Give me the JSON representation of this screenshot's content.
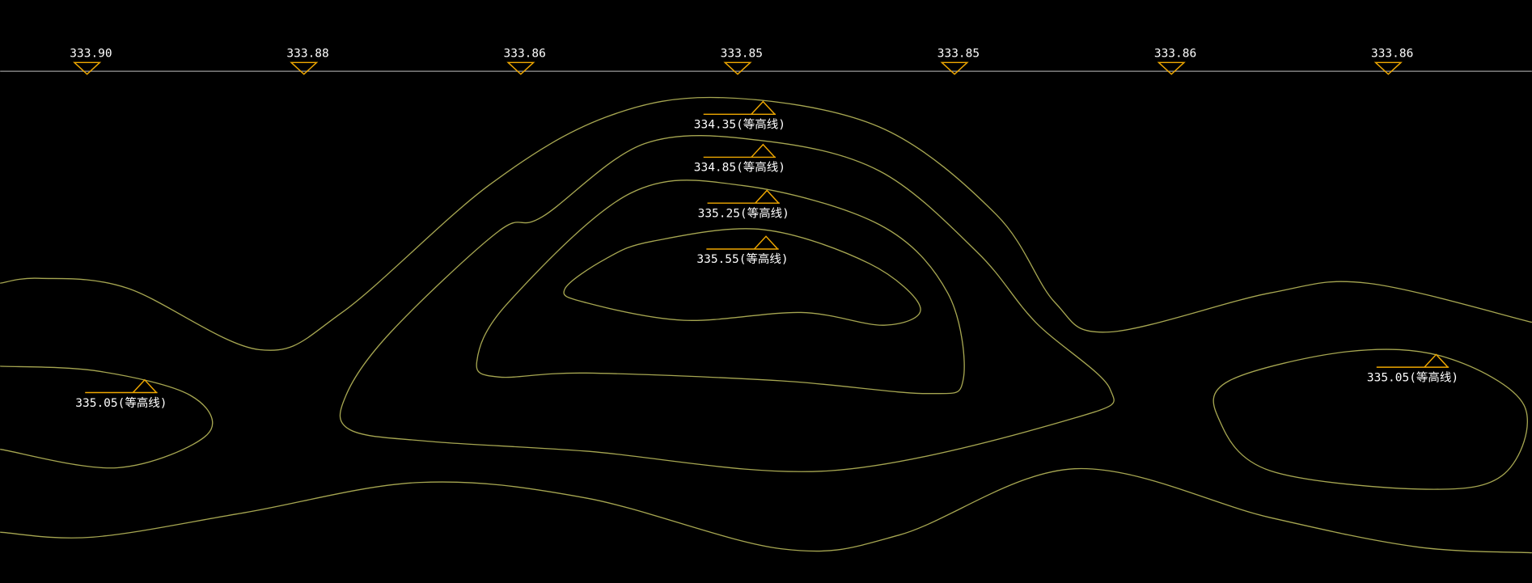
{
  "top_elevations": [
    "333.90",
    "333.88",
    "333.86",
    "333.85",
    "333.85",
    "333.86",
    "333.86"
  ],
  "contour_labels": [
    "334.35(等高线)",
    "334.85(等高线)",
    "335.25(等高线)",
    "335.55(等高线)",
    "335.05(等高线)",
    "335.05(等高线)"
  ]
}
